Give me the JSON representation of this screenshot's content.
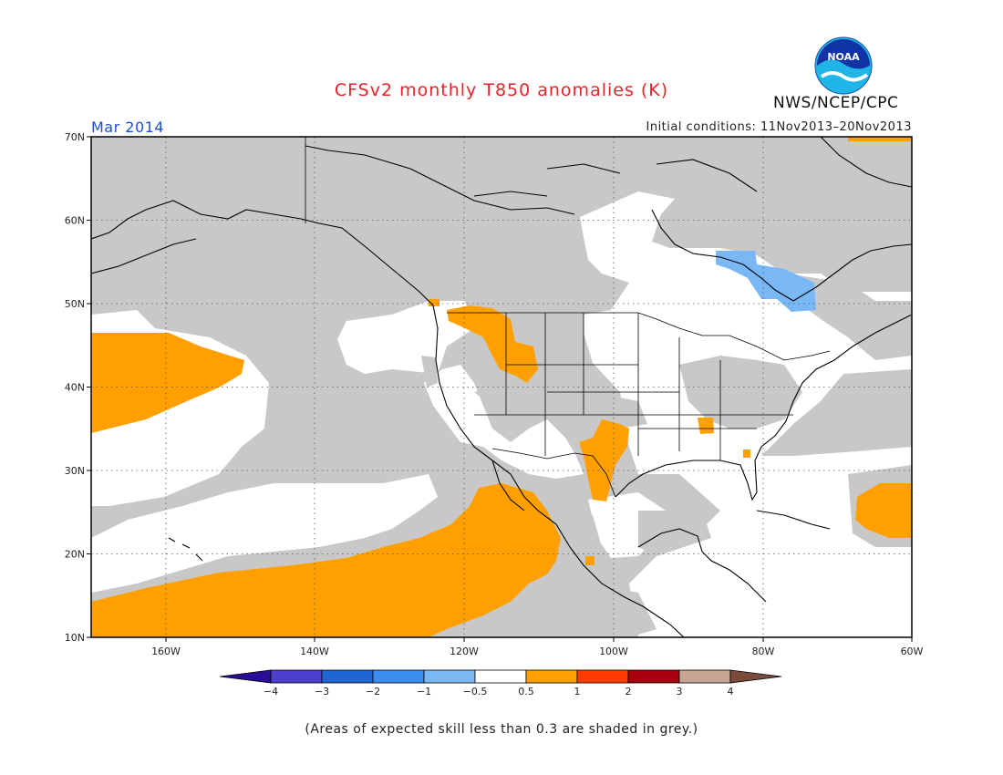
{
  "header": {
    "title": "CFSv2 monthly T850 anomalies (K)",
    "agency": "NWS/NCEP/CPC",
    "logo_text": "NOAA",
    "valid_month": "Mar 2014",
    "initial_conditions": "Initial conditions: 11Nov2013–20Nov2013"
  },
  "map": {
    "lat_labels": [
      "70N",
      "60N",
      "50N",
      "40N",
      "30N",
      "20N",
      "10N"
    ],
    "lon_labels": [
      "160W",
      "140W",
      "120W",
      "100W",
      "80W",
      "60W"
    ]
  },
  "colorbar": {
    "tick_labels": [
      "−4",
      "−3",
      "−2",
      "−1",
      "−0.5",
      "0.5",
      "1",
      "2",
      "3",
      "4"
    ],
    "colors": [
      "#2a0f96",
      "#4e3fcf",
      "#1f66d4",
      "#3c8df0",
      "#7ab8f5",
      "#ffffff",
      "#ffa000",
      "#ff3c00",
      "#a8000e",
      "#c7a593",
      "#7a4a3a"
    ]
  },
  "colors": {
    "low_skill_grey": "#c8c8c8",
    "warm_anomaly": "#ffa000",
    "cool_anomaly": "#7ab8f5",
    "title_red": "#e8222a",
    "month_blue": "#1a4fd6"
  },
  "footnote": "(Areas of expected skill less than 0.3 are shaded in grey.)"
}
